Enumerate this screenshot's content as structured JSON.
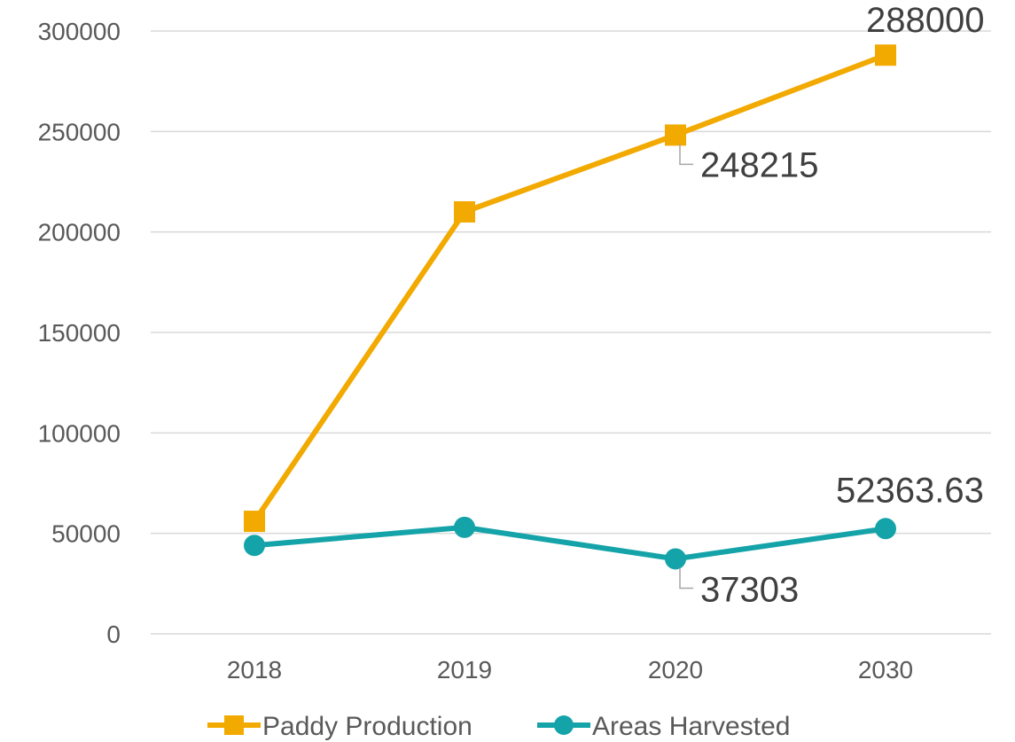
{
  "chart_data": {
    "type": "line",
    "categories": [
      "2018",
      "2019",
      "2020",
      "2030"
    ],
    "ylim": [
      0,
      300000
    ],
    "yticks": [
      "0",
      "50000",
      "100000",
      "150000",
      "200000",
      "250000",
      "300000"
    ],
    "grid": true,
    "legend_position": "bottom",
    "series": [
      {
        "name": "Paddy Production",
        "color": "#F2A900",
        "marker": "square",
        "values": [
          56000,
          210000,
          248215,
          288000
        ],
        "data_labels": [
          "",
          "",
          "248215",
          "288000"
        ]
      },
      {
        "name": "Areas Harvested",
        "color": "#14A3A8",
        "marker": "circle",
        "values": [
          44000,
          53000,
          37303,
          52363.63
        ],
        "data_labels": [
          "",
          "",
          "37303",
          "52363.63"
        ]
      }
    ]
  }
}
